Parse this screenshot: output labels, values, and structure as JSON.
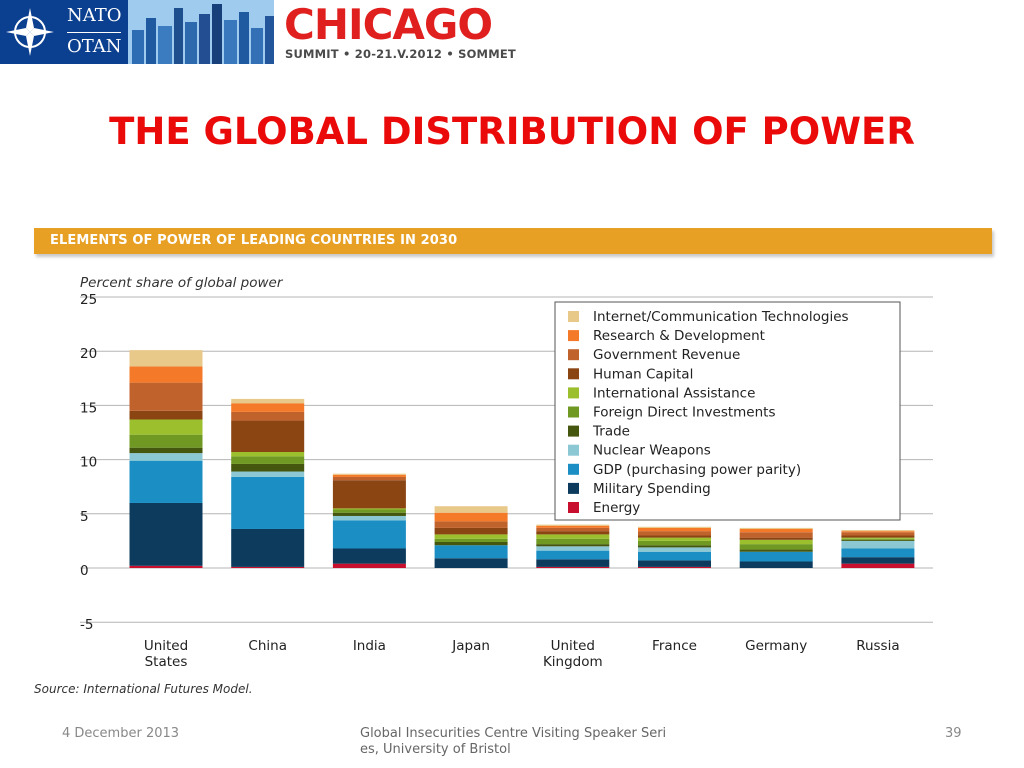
{
  "header": {
    "nato_line1": "NATO",
    "nato_line2": "OTAN",
    "chicago": "CHICAGO",
    "summit": "SUMMIT • 20-21.V.2012 • SOMMET",
    "nato_blue": "#0b3f8f",
    "chicago_red": "#e0201e"
  },
  "slide": {
    "title": "THE GLOBAL DISTRIBUTION OF POWER",
    "title_color": "#ea0a0a"
  },
  "chart_data": {
    "type": "bar",
    "stacked": true,
    "title": "ELEMENTS OF POWER OF LEADING COUNTRIES IN 2030",
    "ylabel": "Percent share of global power",
    "xlabel": "",
    "ylim": [
      -5,
      25
    ],
    "yticks": [
      "25",
      "20",
      "15",
      "10",
      "5",
      "0",
      "-5"
    ],
    "grid": true,
    "legend_position": "top-right",
    "categories": [
      "United States",
      "China",
      "India",
      "Japan",
      "United Kingdom",
      "France",
      "Germany",
      "Russia"
    ],
    "series": [
      {
        "name": "Energy",
        "color": "#c8102e",
        "values": [
          0.2,
          0.1,
          0.4,
          0,
          0.1,
          0.1,
          0,
          0.4
        ]
      },
      {
        "name": "Military Spending",
        "color": "#0d3b5e",
        "values": [
          5.8,
          3.5,
          1.4,
          0.9,
          0.7,
          0.6,
          0.6,
          0.6
        ]
      },
      {
        "name": "GDP (purchasing power parity)",
        "color": "#1b8fc4",
        "values": [
          3.9,
          4.8,
          2.6,
          1.2,
          0.8,
          0.8,
          0.9,
          0.8
        ]
      },
      {
        "name": "Nuclear Weapons",
        "color": "#8cc8d4",
        "values": [
          0.7,
          0.5,
          0.4,
          0,
          0.4,
          0.4,
          0,
          0.7
        ]
      },
      {
        "name": "Trade",
        "color": "#45570e",
        "values": [
          0.5,
          0.7,
          0.3,
          0.3,
          0.2,
          0.2,
          0.2,
          0.1
        ]
      },
      {
        "name": "Foreign Direct Investments",
        "color": "#6f9923",
        "values": [
          1.2,
          0.7,
          0.3,
          0.3,
          0.5,
          0.4,
          0.5,
          0.1
        ]
      },
      {
        "name": "International Assistance",
        "color": "#9bbf2d",
        "values": [
          1.4,
          0.4,
          0.1,
          0.4,
          0.4,
          0.3,
          0.4,
          0.1
        ]
      },
      {
        "name": "Human Capital",
        "color": "#8b4513",
        "values": [
          0.8,
          2.9,
          2.6,
          0.6,
          0.3,
          0.2,
          0.2,
          0.2
        ]
      },
      {
        "name": "Government Revenue",
        "color": "#c0622c",
        "values": [
          2.6,
          0.8,
          0.3,
          0.6,
          0.3,
          0.4,
          0.5,
          0.3
        ]
      },
      {
        "name": "Research & Development",
        "color": "#f47a2a",
        "values": [
          1.5,
          0.8,
          0.2,
          0.8,
          0.2,
          0.3,
          0.3,
          0.1
        ]
      },
      {
        "name": "Internet/Communication Technologies",
        "color": "#e8c98a",
        "values": [
          1.5,
          0.4,
          0.1,
          0.6,
          0.1,
          0.1,
          0.1,
          0.1
        ]
      }
    ],
    "source": "Source: International Futures Model.",
    "banner_color": "#e7a024"
  },
  "footer": {
    "date": "4 December 2013",
    "center": "Global Insecurities Centre Visiting Speaker Series, University of Bristol",
    "page": "39"
  }
}
